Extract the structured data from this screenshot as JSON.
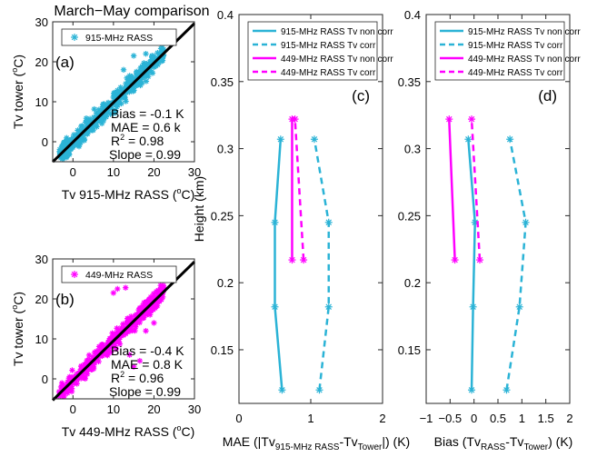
{
  "figure_title": "March−May comparison",
  "chart_data": [
    {
      "id": "a",
      "type": "scatter",
      "panel_label": "(a)",
      "xlabel_main": "Tv 915-MHz RASS (",
      "xlabel_sup": "o",
      "xlabel_end": "C)",
      "ylabel_main": "Tv tower (",
      "ylabel_sup": "o",
      "ylabel_end": "C)",
      "xlim": [
        -5,
        30
      ],
      "ylim": [
        -5,
        30
      ],
      "xticks": [
        0,
        10,
        20,
        30
      ],
      "yticks": [
        0,
        10,
        20,
        30
      ],
      "legend": "915-MHz RASS",
      "color": "#2bb3d6",
      "stats": [
        "Bias = -0.1 K",
        "MAE = 0.6 k",
        "R",
        "2",
        " = 0.98",
        "Slope = 0.99"
      ],
      "fit_line": {
        "slope": 0.99,
        "intercept": -0.1
      },
      "outliers": [
        [
          12.5,
          18.0
        ],
        [
          15.0,
          21.5
        ],
        [
          18.0,
          22.0
        ],
        [
          14.0,
          16.5
        ],
        [
          22.0,
          23.5
        ]
      ]
    },
    {
      "id": "b",
      "type": "scatter",
      "panel_label": "(b)",
      "xlabel_main": "Tv 449-MHz RASS (",
      "xlabel_sup": "o",
      "xlabel_end": "C)",
      "ylabel_main": "Tv tower (",
      "ylabel_sup": "o",
      "ylabel_end": "C)",
      "xlim": [
        -5,
        30
      ],
      "ylim": [
        -5,
        30
      ],
      "xticks": [
        0,
        10,
        20,
        30
      ],
      "yticks": [
        0,
        10,
        20,
        30
      ],
      "legend": "449-MHz RASS",
      "color": "#ff00ff",
      "stats": [
        "Bias = -0.4 K",
        "MAE = 0.8 K",
        "R",
        "2",
        " = 0.96",
        "Slope = 0.99"
      ],
      "fit_line": {
        "slope": 0.99,
        "intercept": -0.4
      },
      "outliers": [
        [
          10.0,
          21.5
        ],
        [
          11.0,
          22.5
        ],
        [
          13.0,
          22.8
        ],
        [
          16.5,
          4.5
        ],
        [
          15.0,
          3.0
        ],
        [
          14.0,
          6.0
        ],
        [
          18.0,
          12.0
        ],
        [
          20.0,
          14.0
        ]
      ]
    },
    {
      "id": "c",
      "type": "line",
      "panel_label": "(c)",
      "xlabel_parts": [
        "MAE (|Tv",
        "915-MHz RASS",
        "-Tv",
        "Tower",
        "|) (K)"
      ],
      "ylabel": "Height (km)",
      "xlim": [
        0,
        2
      ],
      "ylim": [
        0.11,
        0.4
      ],
      "xticks": [
        0,
        1,
        2
      ],
      "yticks": [
        0.15,
        0.2,
        0.25,
        0.3,
        0.35,
        0.4
      ],
      "legend": [
        "915-MHz RASS Tv non corr",
        "915-MHz RASS Tv corr",
        "449-MHz RASS Tv non corr",
        "449-MHz RASS Tv corr"
      ],
      "series": [
        {
          "name": "915-MHz RASS Tv non corr",
          "color": "#2bb3d6",
          "dash": false,
          "x": [
            0.6,
            0.5,
            0.5,
            0.58
          ],
          "y": [
            0.12,
            0.182,
            0.245,
            0.307
          ]
        },
        {
          "name": "915-MHz RASS Tv corr",
          "color": "#2bb3d6",
          "dash": true,
          "x": [
            1.12,
            1.25,
            1.25,
            1.05
          ],
          "y": [
            0.12,
            0.182,
            0.245,
            0.307
          ]
        },
        {
          "name": "449-MHz RASS Tv non corr",
          "color": "#ff00ff",
          "dash": false,
          "x": [
            0.74,
            0.74
          ],
          "y": [
            0.217,
            0.322
          ]
        },
        {
          "name": "449-MHz RASS Tv corr",
          "color": "#ff00ff",
          "dash": true,
          "x": [
            0.9,
            0.78
          ],
          "y": [
            0.217,
            0.322
          ]
        }
      ]
    },
    {
      "id": "d",
      "type": "line",
      "panel_label": "(d)",
      "xlabel_parts": [
        "Bias (Tv",
        "RASS",
        "-Tv",
        "Tower",
        ") (K)"
      ],
      "xlim": [
        -1,
        2
      ],
      "ylim": [
        0.11,
        0.4
      ],
      "xticks": [
        -1,
        -0.5,
        0,
        0.5,
        1,
        1.5,
        2
      ],
      "yticks": [
        0.15,
        0.2,
        0.25,
        0.3,
        0.35,
        0.4
      ],
      "legend": [
        "915-MHz RASS Tv non corr",
        "915-MHz RASS Tv corr",
        "449-MHz RASS Tv non corr",
        "449-MHz RASS Tv corr"
      ],
      "series": [
        {
          "name": "915-MHz RASS Tv non corr",
          "color": "#2bb3d6",
          "dash": false,
          "x": [
            -0.05,
            -0.02,
            0.02,
            -0.12
          ],
          "y": [
            0.12,
            0.182,
            0.245,
            0.307
          ]
        },
        {
          "name": "915-MHz RASS Tv corr",
          "color": "#2bb3d6",
          "dash": true,
          "x": [
            0.68,
            0.95,
            1.08,
            0.75
          ],
          "y": [
            0.12,
            0.182,
            0.245,
            0.307
          ]
        },
        {
          "name": "449-MHz RASS Tv non corr",
          "color": "#ff00ff",
          "dash": false,
          "x": [
            -0.4,
            -0.52
          ],
          "y": [
            0.217,
            0.322
          ]
        },
        {
          "name": "449-MHz RASS Tv corr",
          "color": "#ff00ff",
          "dash": true,
          "x": [
            0.12,
            -0.05
          ],
          "y": [
            0.217,
            0.322
          ]
        }
      ]
    }
  ]
}
